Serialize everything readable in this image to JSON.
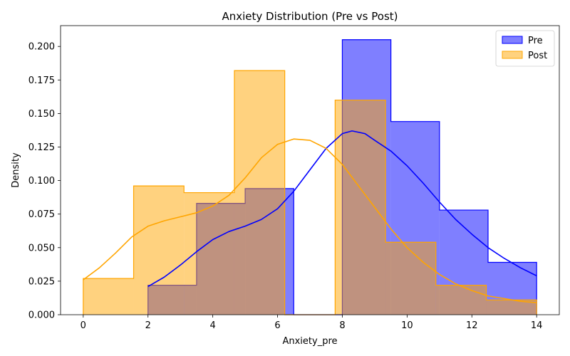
{
  "chart_data": {
    "type": "histogram",
    "title": "Anxiety Distribution (Pre vs Post)",
    "xlabel": "Anxiety_pre",
    "ylabel": "Density",
    "xlim": [
      -0.7,
      14.7
    ],
    "ylim": [
      0,
      0.2155
    ],
    "xticks": [
      0,
      2,
      4,
      6,
      8,
      10,
      12,
      14
    ],
    "yticks": [
      0.0,
      0.025,
      0.05,
      0.075,
      0.1,
      0.125,
      0.15,
      0.175,
      0.2
    ],
    "ytick_labels": [
      "0.000",
      "0.025",
      "0.050",
      "0.075",
      "0.100",
      "0.125",
      "0.150",
      "0.175",
      "0.200"
    ],
    "grid": false,
    "legend_position": "top-right",
    "series": [
      {
        "name": "Pre",
        "color": "#0000ff",
        "fill_opacity": 0.5,
        "bins": [
          {
            "x0": 2.0,
            "x1": 3.5,
            "density": 0.022
          },
          {
            "x0": 3.5,
            "x1": 5.0,
            "density": 0.083
          },
          {
            "x0": 5.0,
            "x1": 6.5,
            "density": 0.094
          },
          {
            "x0": 6.5,
            "x1": 8.0,
            "density": 0.0
          },
          {
            "x0": 8.0,
            "x1": 9.5,
            "density": 0.205
          },
          {
            "x0": 9.5,
            "x1": 11.0,
            "density": 0.144
          },
          {
            "x0": 11.0,
            "x1": 12.5,
            "density": 0.078
          },
          {
            "x0": 12.5,
            "x1": 14.0,
            "density": 0.039
          }
        ],
        "kde": [
          [
            2.0,
            0.021
          ],
          [
            2.5,
            0.028
          ],
          [
            3.0,
            0.037
          ],
          [
            3.5,
            0.047
          ],
          [
            4.0,
            0.056
          ],
          [
            4.5,
            0.062
          ],
          [
            5.0,
            0.066
          ],
          [
            5.5,
            0.071
          ],
          [
            6.0,
            0.079
          ],
          [
            6.5,
            0.092
          ],
          [
            7.0,
            0.108
          ],
          [
            7.5,
            0.124
          ],
          [
            8.0,
            0.135
          ],
          [
            8.3,
            0.137
          ],
          [
            8.7,
            0.135
          ],
          [
            9.0,
            0.13
          ],
          [
            9.5,
            0.122
          ],
          [
            10.0,
            0.111
          ],
          [
            10.5,
            0.098
          ],
          [
            11.0,
            0.084
          ],
          [
            11.5,
            0.071
          ],
          [
            12.0,
            0.06
          ],
          [
            12.5,
            0.05
          ],
          [
            13.0,
            0.042
          ],
          [
            13.5,
            0.035
          ],
          [
            14.0,
            0.029
          ]
        ]
      },
      {
        "name": "Post",
        "color": "#ffa500",
        "fill_opacity": 0.5,
        "bins": [
          {
            "x0": 0.0,
            "x1": 1.556,
            "density": 0.027
          },
          {
            "x0": 1.556,
            "x1": 3.111,
            "density": 0.096
          },
          {
            "x0": 3.111,
            "x1": 4.667,
            "density": 0.091
          },
          {
            "x0": 4.667,
            "x1": 6.222,
            "density": 0.182
          },
          {
            "x0": 6.222,
            "x1": 7.778,
            "density": 0.0
          },
          {
            "x0": 7.778,
            "x1": 9.333,
            "density": 0.16
          },
          {
            "x0": 9.333,
            "x1": 10.889,
            "density": 0.054
          },
          {
            "x0": 10.889,
            "x1": 12.444,
            "density": 0.022
          },
          {
            "x0": 12.444,
            "x1": 14.0,
            "density": 0.011
          }
        ],
        "kde": [
          [
            0.0,
            0.026
          ],
          [
            0.5,
            0.035
          ],
          [
            1.0,
            0.046
          ],
          [
            1.5,
            0.058
          ],
          [
            2.0,
            0.066
          ],
          [
            2.5,
            0.07
          ],
          [
            3.0,
            0.073
          ],
          [
            3.5,
            0.076
          ],
          [
            4.0,
            0.081
          ],
          [
            4.5,
            0.089
          ],
          [
            5.0,
            0.102
          ],
          [
            5.5,
            0.117
          ],
          [
            6.0,
            0.127
          ],
          [
            6.5,
            0.131
          ],
          [
            7.0,
            0.13
          ],
          [
            7.5,
            0.124
          ],
          [
            8.0,
            0.112
          ],
          [
            8.5,
            0.096
          ],
          [
            9.0,
            0.08
          ],
          [
            9.5,
            0.064
          ],
          [
            10.0,
            0.05
          ],
          [
            10.5,
            0.039
          ],
          [
            11.0,
            0.03
          ],
          [
            11.5,
            0.023
          ],
          [
            12.0,
            0.018
          ],
          [
            12.5,
            0.014
          ],
          [
            13.0,
            0.012
          ],
          [
            13.5,
            0.01
          ],
          [
            14.0,
            0.009
          ]
        ]
      }
    ]
  }
}
